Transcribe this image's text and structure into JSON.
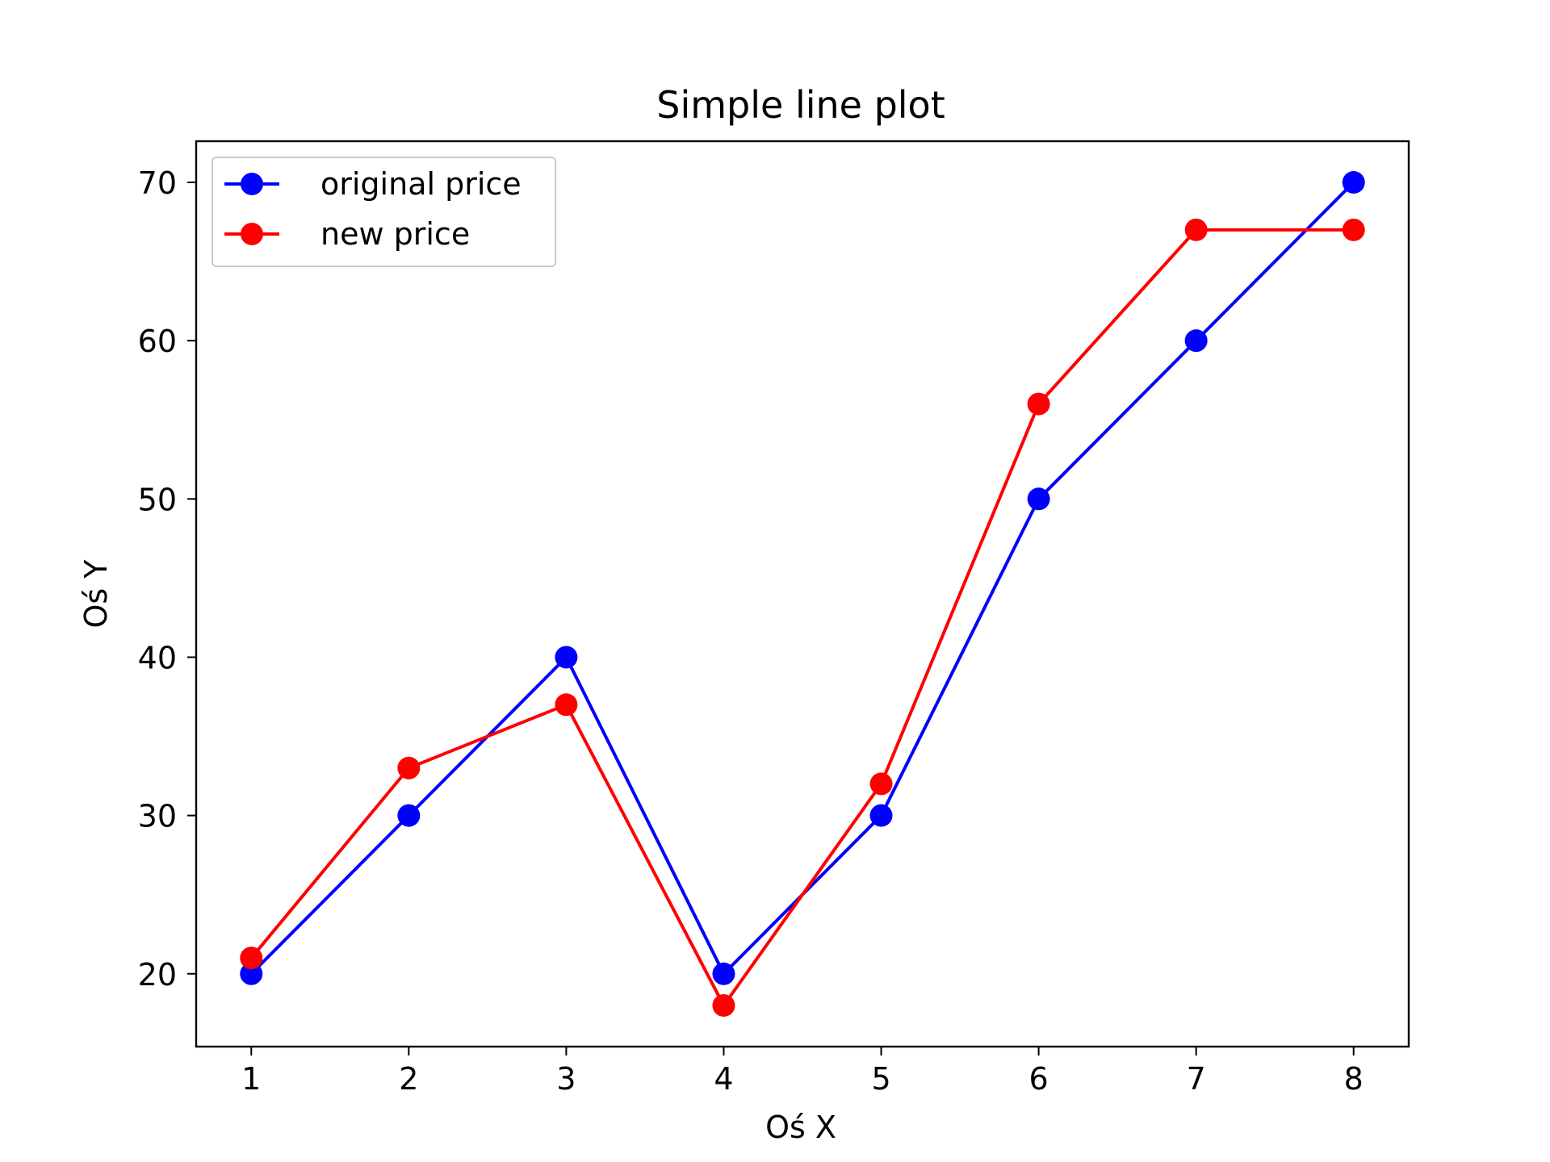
{
  "chart_data": {
    "type": "line",
    "title": "Simple line plot",
    "xlabel": "Oś X",
    "ylabel": "Oś Y",
    "x": [
      1,
      2,
      3,
      4,
      5,
      6,
      7,
      8
    ],
    "xticks": [
      "1",
      "2",
      "3",
      "4",
      "5",
      "6",
      "7",
      "8"
    ],
    "yticks": [
      "20",
      "30",
      "40",
      "50",
      "60",
      "70"
    ],
    "xlim": [
      0.65,
      8.35
    ],
    "ylim": [
      15.4,
      72.6
    ],
    "grid": false,
    "legend_position": "upper-left",
    "series": [
      {
        "name": "original price",
        "color": "#0000ff",
        "marker": "circle",
        "values": [
          20,
          30,
          40,
          20,
          30,
          50,
          60,
          70
        ]
      },
      {
        "name": "new price",
        "color": "#ff0000",
        "marker": "circle",
        "values": [
          21,
          33,
          37,
          18,
          32,
          56,
          67,
          67
        ]
      }
    ]
  }
}
